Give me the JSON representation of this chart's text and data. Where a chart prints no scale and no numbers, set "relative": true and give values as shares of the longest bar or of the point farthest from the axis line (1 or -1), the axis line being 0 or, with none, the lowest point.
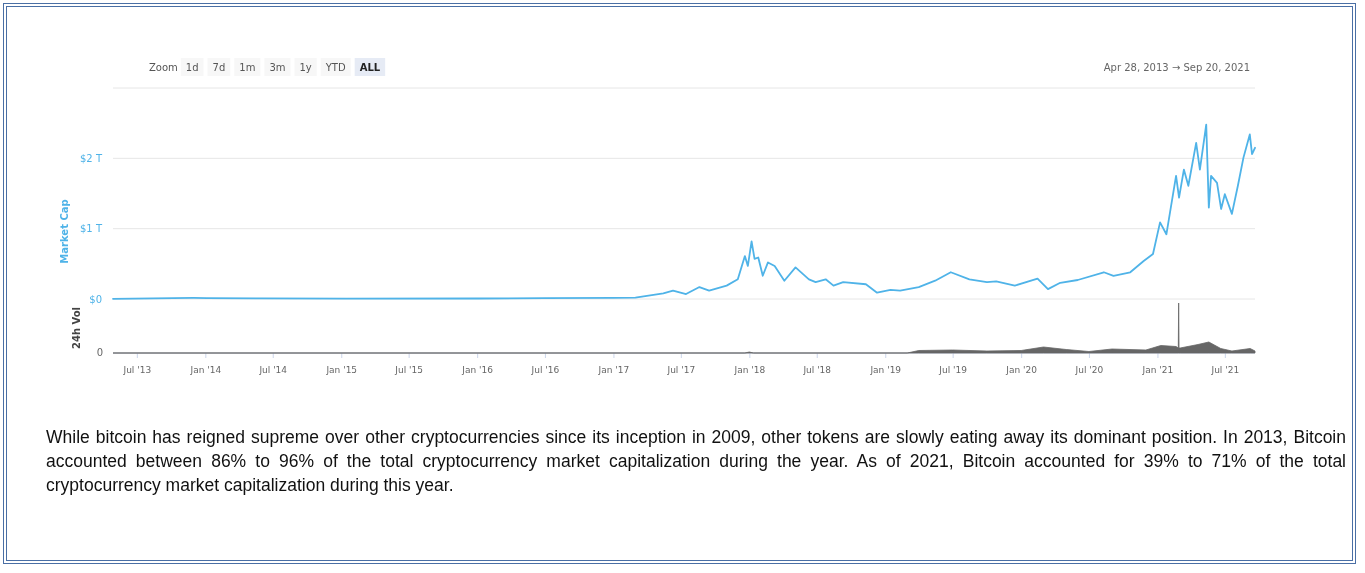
{
  "chart_data": [
    {
      "type": "line",
      "ylabel": "Market Cap",
      "ylim": [
        0,
        3
      ],
      "yticks": [
        {
          "value": 0,
          "label": "$0"
        },
        {
          "value": 1,
          "label": "$1 T"
        },
        {
          "value": 2,
          "label": "$2 T"
        },
        {
          "value": 3,
          "label": null
        }
      ],
      "xlim": [
        "2013-04-28",
        "2021-09-20"
      ],
      "tick_labels": "y",
      "grid": "y",
      "marker": "none",
      "line_style": "solid",
      "annotations": [
        "Zoom",
        "1d",
        "7d",
        "1m",
        "3m",
        "1y",
        "YTD",
        "ALL",
        "Apr 28, 2013 → Sep 20, 2021",
        "While bitcoin has reigned supreme over other cryptocurrencies since its inception in 2009, other tokens are slowly eating away its dominant position. In 2013, Bitcoin accounted between 86% to 96% of the total cryptocurrency market capitalization during the year. As of 2021, Bitcoin accounted for 39% to 71% of the total cryptocurrency market capitalization during this year."
      ],
      "x": [
        "2013-04-28",
        "2013-11-30",
        "2014-01-05",
        "2014-06-01",
        "2015-01-15",
        "2016-01-01",
        "2016-07-01",
        "2017-01-01",
        "2017-03-01",
        "2017-05-15",
        "2017-06-10",
        "2017-07-15",
        "2017-08-20",
        "2017-09-15",
        "2017-11-01",
        "2017-12-01",
        "2017-12-20",
        "2017-12-28",
        "2018-01-07",
        "2018-01-15",
        "2018-01-25",
        "2018-02-06",
        "2018-02-20",
        "2018-03-10",
        "2018-04-05",
        "2018-05-05",
        "2018-06-10",
        "2018-06-28",
        "2018-07-25",
        "2018-08-15",
        "2018-09-10",
        "2018-11-10",
        "2018-12-10",
        "2019-01-15",
        "2019-02-10",
        "2019-04-01",
        "2019-05-15",
        "2019-06-26",
        "2019-08-15",
        "2019-10-01",
        "2019-10-26",
        "2019-12-15",
        "2020-02-14",
        "2020-03-13",
        "2020-04-15",
        "2020-06-01",
        "2020-08-10",
        "2020-09-05",
        "2020-10-20",
        "2020-11-25",
        "2020-12-20",
        "2021-01-08",
        "2021-01-25",
        "2021-02-20",
        "2021-02-28",
        "2021-03-13",
        "2021-03-25",
        "2021-04-15",
        "2021-04-25",
        "2021-05-12",
        "2021-05-19",
        "2021-05-25",
        "2021-06-10",
        "2021-06-21",
        "2021-07-01",
        "2021-07-20",
        "2021-08-05",
        "2021-08-20",
        "2021-09-06",
        "2021-09-12",
        "2021-09-20"
      ],
      "series": [
        {
          "color": "#4fb3e8",
          "values": [
            0.002,
            0.015,
            0.013,
            0.008,
            0.004,
            0.007,
            0.012,
            0.017,
            0.02,
            0.08,
            0.12,
            0.07,
            0.17,
            0.12,
            0.19,
            0.28,
            0.61,
            0.47,
            0.82,
            0.57,
            0.59,
            0.33,
            0.52,
            0.47,
            0.26,
            0.45,
            0.28,
            0.24,
            0.28,
            0.19,
            0.24,
            0.21,
            0.09,
            0.13,
            0.12,
            0.17,
            0.26,
            0.38,
            0.28,
            0.24,
            0.25,
            0.19,
            0.29,
            0.14,
            0.23,
            0.27,
            0.38,
            0.33,
            0.38,
            0.54,
            0.64,
            1.09,
            0.92,
            1.75,
            1.44,
            1.84,
            1.61,
            2.22,
            1.84,
            2.48,
            1.3,
            1.75,
            1.65,
            1.28,
            1.49,
            1.21,
            1.61,
            2.01,
            2.34,
            2.06,
            2.15
          ]
        }
      ]
    },
    {
      "type": "area",
      "relative": true,
      "ylabel": "24h Vol",
      "annotations": [
        "0"
      ],
      "xlim": [
        "2013-04-28",
        "2021-09-20"
      ],
      "tick_labels": "x",
      "xticks": [
        {
          "value": "2013-07-01",
          "label": "Jul '13"
        },
        {
          "value": "2014-01-01",
          "label": "Jan '14"
        },
        {
          "value": "2014-07-01",
          "label": "Jul '14"
        },
        {
          "value": "2015-01-01",
          "label": "Jan '15"
        },
        {
          "value": "2015-07-01",
          "label": "Jul '15"
        },
        {
          "value": "2016-01-01",
          "label": "Jan '16"
        },
        {
          "value": "2016-07-01",
          "label": "Jul '16"
        },
        {
          "value": "2017-01-01",
          "label": "Jan '17"
        },
        {
          "value": "2017-07-01",
          "label": "Jul '17"
        },
        {
          "value": "2018-01-01",
          "label": "Jan '18"
        },
        {
          "value": "2018-07-01",
          "label": "Jul '18"
        },
        {
          "value": "2019-01-01",
          "label": "Jan '19"
        },
        {
          "value": "2019-07-01",
          "label": "Jul '19"
        },
        {
          "value": "2020-01-01",
          "label": "Jan '20"
        },
        {
          "value": "2020-07-01",
          "label": "Jul '20"
        },
        {
          "value": "2021-01-01",
          "label": "Jan '21"
        },
        {
          "value": "2021-07-01",
          "label": "Jul '21"
        }
      ],
      "x": [
        "2013-04-28",
        "2017-12-20",
        "2018-01-01",
        "2018-01-12",
        "2019-03-01",
        "2019-04-01",
        "2019-07-01",
        "2019-10-01",
        "2020-01-01",
        "2020-03-01",
        "2020-05-01",
        "2020-07-01",
        "2020-09-01",
        "2020-12-01",
        "2021-01-10",
        "2021-02-20",
        "2021-02-26",
        "2021-02-27",
        "2021-02-28",
        "2021-03-03",
        "2021-04-20",
        "2021-05-19",
        "2021-06-20",
        "2021-07-20",
        "2021-09-07",
        "2021-09-20"
      ],
      "series": [
        {
          "color": "#666666",
          "values": [
            0,
            0,
            0.02,
            0,
            0,
            0.05,
            0.06,
            0.04,
            0.05,
            0.12,
            0.07,
            0.03,
            0.08,
            0.06,
            0.15,
            0.13,
            0.1,
            1,
            0.1,
            0.1,
            0.17,
            0.22,
            0.09,
            0.04,
            0.09,
            0.04
          ]
        }
      ]
    }
  ]
}
